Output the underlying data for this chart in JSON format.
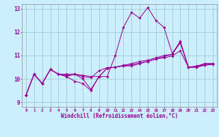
{
  "xlabel": "Windchill (Refroidissement éolien,°C)",
  "background_color": "#cceeff",
  "grid_color": "#99cccc",
  "line_color": "#990099",
  "xlim": [
    -0.5,
    23.5
  ],
  "ylim": [
    8.8,
    13.2
  ],
  "yticks": [
    9,
    10,
    11,
    12,
    13
  ],
  "xticks": [
    0,
    1,
    2,
    3,
    4,
    5,
    6,
    7,
    8,
    9,
    10,
    11,
    12,
    13,
    14,
    15,
    16,
    17,
    18,
    19,
    20,
    21,
    22,
    23
  ],
  "series": [
    [
      9.3,
      10.2,
      9.8,
      10.4,
      10.2,
      10.1,
      9.9,
      9.8,
      9.5,
      10.1,
      10.1,
      11.0,
      12.2,
      12.85,
      12.6,
      13.05,
      12.5,
      12.2,
      11.1,
      11.55,
      10.5,
      10.55,
      10.65,
      10.65
    ],
    [
      9.3,
      10.2,
      9.8,
      10.4,
      10.2,
      10.15,
      10.2,
      10.15,
      10.1,
      10.1,
      10.45,
      10.5,
      10.55,
      10.55,
      10.65,
      10.75,
      10.85,
      10.95,
      11.05,
      11.55,
      10.5,
      10.5,
      10.65,
      10.65
    ],
    [
      9.3,
      10.2,
      9.8,
      10.4,
      10.2,
      10.2,
      10.2,
      10.1,
      10.05,
      10.35,
      10.48,
      10.5,
      10.58,
      10.65,
      10.75,
      10.8,
      10.9,
      11.0,
      11.05,
      11.62,
      10.5,
      10.5,
      10.6,
      10.65
    ],
    [
      9.3,
      10.2,
      9.8,
      10.4,
      10.2,
      10.1,
      10.2,
      10.0,
      9.55,
      10.1,
      10.47,
      10.5,
      10.57,
      10.6,
      10.68,
      10.75,
      10.85,
      10.9,
      10.98,
      11.2,
      10.5,
      10.5,
      10.58,
      10.62
    ]
  ]
}
